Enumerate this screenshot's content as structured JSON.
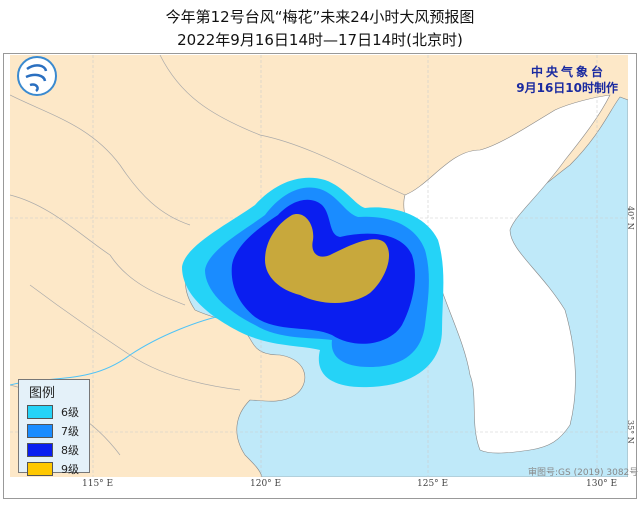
{
  "title": "今年第12号台风“梅花”未来24小时大风预报图",
  "subtitle": "2022年9月16日14时—17日14时(北京时)",
  "agency": {
    "name": "中央气象台",
    "issued": "9月16日10时制作"
  },
  "logo": "cma-logo",
  "legend": {
    "title": "图例",
    "items": [
      {
        "label": "6级",
        "color": "#25d3f7"
      },
      {
        "label": "7级",
        "color": "#1a8cff"
      },
      {
        "label": "8级",
        "color": "#0a1ef0"
      },
      {
        "label": "9级",
        "color": "#ffc800"
      }
    ]
  },
  "longitude_labels": [
    "115° E",
    "120° E",
    "125° E",
    "130° E"
  ],
  "latitude_labels": [
    "40° N",
    "35° N"
  ],
  "approval_number": "审图号:GS (2019) 3082号",
  "colors": {
    "land": "#fde8c8",
    "sea": "#bfe9f9",
    "korea": "#ffffff",
    "gold_area": "#c8a83c"
  }
}
